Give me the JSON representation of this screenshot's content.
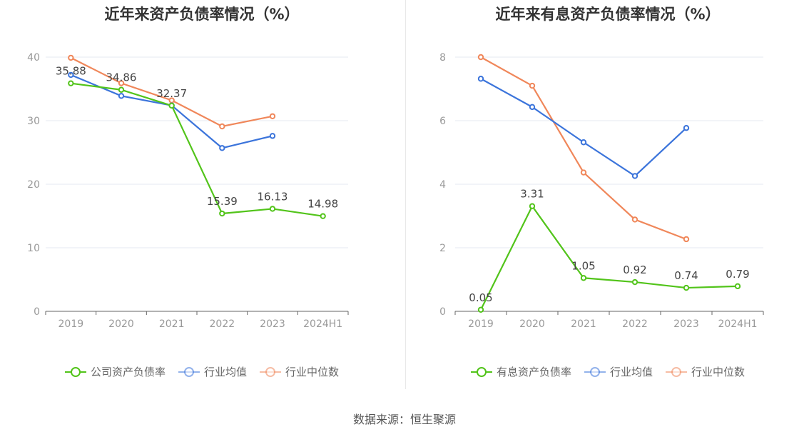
{
  "source": "数据来源：恒生聚源",
  "chart_data": [
    {
      "type": "line",
      "title": "近年来资产负债率情况（%）",
      "categories": [
        "2019",
        "2020",
        "2021",
        "2022",
        "2023",
        "2024H1"
      ],
      "ylim": [
        0,
        40
      ],
      "yticks": [
        0,
        10,
        20,
        30,
        40
      ],
      "grid": true,
      "legend_position": "bottom",
      "series": [
        {
          "name": "公司资产负债率",
          "color": "#52c41a",
          "values": [
            35.88,
            34.86,
            32.37,
            15.39,
            16.13,
            14.98
          ],
          "show_labels": true
        },
        {
          "name": "行业均值",
          "color": "#3b74db",
          "values": [
            37.2,
            33.9,
            32.4,
            25.7,
            27.6,
            null
          ],
          "show_labels": false
        },
        {
          "name": "行业中位数",
          "color": "#f0875a",
          "values": [
            39.9,
            35.9,
            33.2,
            29.1,
            30.7,
            null
          ],
          "show_labels": false
        }
      ]
    },
    {
      "type": "line",
      "title": "近年来有息资产负债率情况（%）",
      "categories": [
        "2019",
        "2020",
        "2021",
        "2022",
        "2023",
        "2024H1"
      ],
      "ylim": [
        0,
        8
      ],
      "yticks": [
        0,
        2,
        4,
        6,
        8
      ],
      "grid": true,
      "legend_position": "bottom",
      "series": [
        {
          "name": "有息资产负债率",
          "color": "#52c41a",
          "values": [
            0.05,
            3.31,
            1.05,
            0.92,
            0.74,
            0.79
          ],
          "show_labels": true
        },
        {
          "name": "行业均值",
          "color": "#3b74db",
          "values": [
            7.32,
            6.43,
            5.32,
            4.26,
            5.77,
            null
          ],
          "show_labels": false
        },
        {
          "name": "行业中位数",
          "color": "#f0875a",
          "values": [
            8.0,
            7.1,
            4.37,
            2.89,
            2.27,
            null
          ],
          "show_labels": false
        }
      ]
    }
  ]
}
